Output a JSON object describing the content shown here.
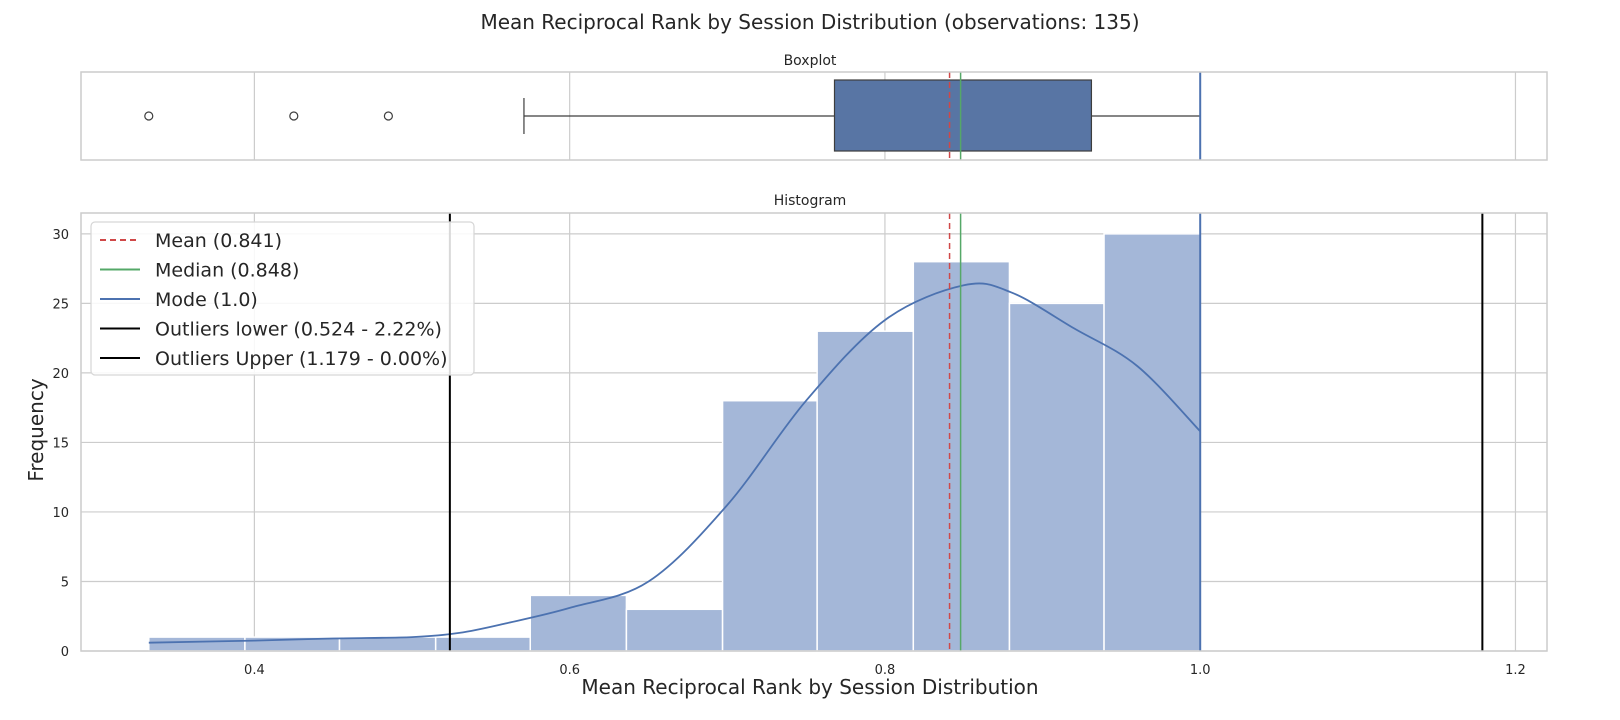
{
  "chart_data": {
    "type": "bar",
    "title": "Mean Reciprocal Rank by Session Distribution (observations: 135)",
    "xlabel": "Mean Reciprocal Rank by Session Distribution",
    "ylabel": "Frequency",
    "xlim": [
      0.29,
      1.22
    ],
    "ylim": [
      0,
      31.5
    ],
    "x_ticks": [
      "0.4",
      "0.6",
      "0.8",
      "1.0",
      "1.2"
    ],
    "y_ticks": [
      "0",
      "5",
      "10",
      "15",
      "20",
      "25",
      "30"
    ],
    "grid": true,
    "legend_position": "top-left",
    "colors": {
      "bar": "#a4b7d8",
      "box": "#5875a4",
      "kde": "#4c72b0",
      "mean": "#d04848",
      "median": "#55a868",
      "mode": "#4c72b0",
      "outlier": "#000000",
      "grid": "#cccccc",
      "frame": "#cccccc"
    },
    "boxplot": {
      "title": "Boxplot",
      "q1": 0.768,
      "median": 0.848,
      "q3": 0.931,
      "whisker_low": 0.571,
      "whisker_high": 1.0,
      "fliers": [
        0.333,
        0.425,
        0.485
      ]
    },
    "histogram": {
      "title": "Histogram",
      "bins": [
        {
          "x0": 0.333,
          "x1": 0.394,
          "count": 1
        },
        {
          "x0": 0.394,
          "x1": 0.454,
          "count": 1
        },
        {
          "x0": 0.454,
          "x1": 0.515,
          "count": 1
        },
        {
          "x0": 0.515,
          "x1": 0.575,
          "count": 1
        },
        {
          "x0": 0.575,
          "x1": 0.636,
          "count": 4
        },
        {
          "x0": 0.636,
          "x1": 0.697,
          "count": 3
        },
        {
          "x0": 0.697,
          "x1": 0.757,
          "count": 18
        },
        {
          "x0": 0.757,
          "x1": 0.818,
          "count": 23
        },
        {
          "x0": 0.818,
          "x1": 0.879,
          "count": 28
        },
        {
          "x0": 0.879,
          "x1": 0.939,
          "count": 25
        },
        {
          "x0": 0.939,
          "x1": 1.0,
          "count": 30
        }
      ],
      "kde": {
        "x": [
          0.333,
          0.4,
          0.45,
          0.5,
          0.53,
          0.56,
          0.6,
          0.65,
          0.7,
          0.75,
          0.8,
          0.85,
          0.88,
          0.92,
          0.96,
          1.0
        ],
        "y": [
          0.6,
          0.75,
          0.9,
          1.0,
          1.3,
          2.0,
          3.1,
          5.0,
          10.5,
          18.0,
          23.8,
          26.3,
          25.8,
          23.2,
          20.5,
          15.8
        ]
      }
    },
    "stats": {
      "mean": 0.841,
      "median": 0.848,
      "mode": 1.0,
      "outliers_lower": 0.524,
      "outliers_upper": 1.179
    },
    "legend": [
      {
        "label": "Mean (0.841)",
        "style": "dashed",
        "color": "#d04848"
      },
      {
        "label": "Median (0.848)",
        "style": "solid",
        "color": "#55a868"
      },
      {
        "label": "Mode (1.0)",
        "style": "solid",
        "color": "#4c72b0"
      },
      {
        "label": "Outliers lower (0.524 - 2.22%)",
        "style": "solid",
        "color": "#000000"
      },
      {
        "label": "Outliers Upper (1.179 - 0.00%)",
        "style": "solid",
        "color": "#000000"
      }
    ]
  }
}
